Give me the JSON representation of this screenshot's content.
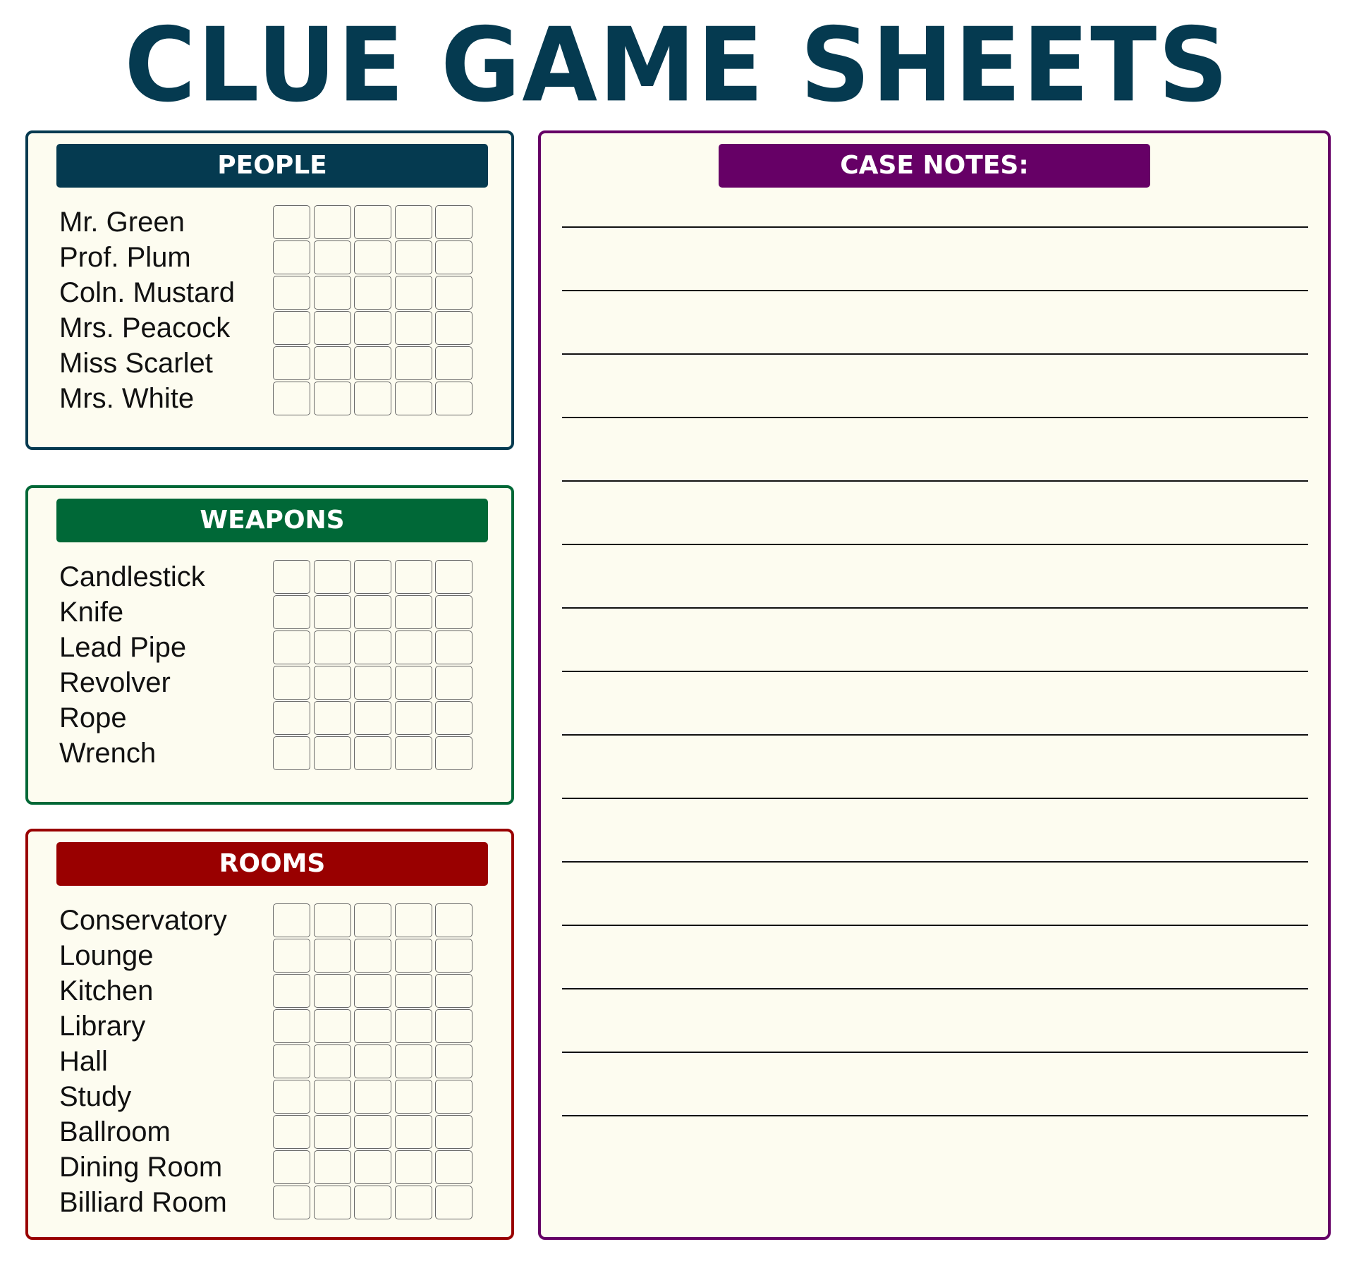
{
  "title": "CLUE GAME SHEETS",
  "colors": {
    "title": "#053a50",
    "people": "#053a50",
    "weapons": "#006837",
    "rooms": "#990000",
    "notes": "#660066",
    "paper": "#fdfcf0"
  },
  "sections": [
    {
      "key": "people",
      "label": "PEOPLE",
      "items": [
        "Mr. Green",
        "Prof. Plum",
        "Coln. Mustard",
        "Mrs. Peacock",
        "Miss Scarlet",
        "Mrs. White"
      ],
      "columns": 5
    },
    {
      "key": "weapons",
      "label": "WEAPONS",
      "items": [
        "Candlestick",
        "Knife",
        "Lead Pipe",
        "Revolver",
        "Rope",
        "Wrench"
      ],
      "columns": 5
    },
    {
      "key": "rooms",
      "label": "ROOMS",
      "items": [
        "Conservatory",
        "Lounge",
        "Kitchen",
        "Library",
        "Hall",
        "Study",
        "Ballroom",
        "Dining Room",
        "Billiard Room"
      ],
      "columns": 5
    }
  ],
  "notes": {
    "label": "CASE NOTES:",
    "line_count": 15
  }
}
